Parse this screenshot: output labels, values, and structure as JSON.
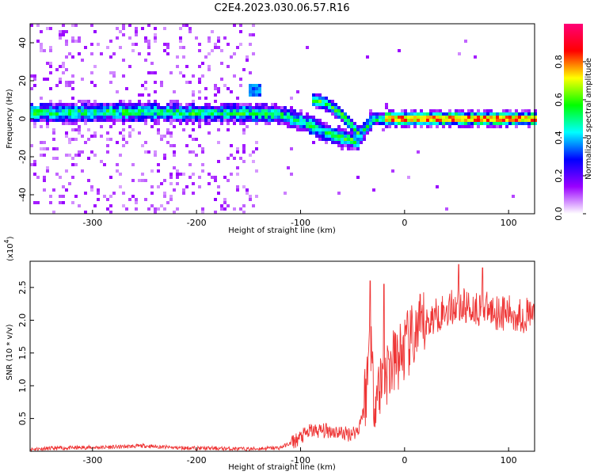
{
  "title": "C2E4.2023.030.06.57.R16",
  "chart_data": [
    {
      "type": "heatmap",
      "xlabel": "Height of straight line (km)",
      "ylabel": "Frequency (Hz)",
      "xlim": [
        -360,
        125
      ],
      "ylim": [
        -50,
        50
      ],
      "xticks": [
        -300,
        -200,
        -100,
        0,
        100
      ],
      "yticks": [
        -40,
        -20,
        0,
        20,
        40
      ],
      "colorbar": {
        "label": "Normalized spectral amplitude",
        "range": [
          0,
          1
        ],
        "ticks": [
          "0.0",
          "0.2",
          "0.4",
          "0.6",
          "0.8"
        ],
        "colors": [
          "#ffffff",
          "#9a00ff",
          "#0000ff",
          "#00ffff",
          "#00ff00",
          "#ffff00",
          "#ff0000",
          "#ff0077"
        ]
      },
      "ridge": {
        "description_free_points": [
          [
            -360,
            3
          ],
          [
            -300,
            3.5
          ],
          [
            -250,
            3.5
          ],
          [
            -200,
            3
          ],
          [
            -150,
            3
          ],
          [
            -120,
            2
          ],
          [
            -100,
            -1
          ],
          [
            -80,
            -6
          ],
          [
            -60,
            -10
          ],
          [
            -45,
            -12
          ],
          [
            -38,
            -5
          ],
          [
            -30,
            0
          ],
          [
            0,
            0
          ],
          [
            50,
            0
          ],
          [
            125,
            0
          ]
        ],
        "upper_branch": [
          [
            -90,
            10
          ],
          [
            -75,
            8
          ],
          [
            -60,
            2
          ],
          [
            -50,
            -4
          ],
          [
            -44,
            -8
          ]
        ],
        "spot": [
          -145,
          15
        ]
      }
    },
    {
      "type": "line",
      "xlabel": "Height of straight line (km)",
      "ylabel": "SNR (10 * v/v)",
      "yscale_label": "(x10",
      "yscale_exp": "4",
      "ytick_unit_note": ")",
      "xlim": [
        -360,
        125
      ],
      "ylim": [
        0,
        2.9
      ],
      "xticks": [
        -300,
        -200,
        -100,
        0,
        100
      ],
      "yticks": [
        0.5,
        1.0,
        1.5,
        2.0,
        2.5
      ],
      "ytick_labels": [
        "0.5",
        "1.0",
        "1.5",
        "2.0",
        "2.5"
      ],
      "color": "#ee3333",
      "envelope": [
        [
          -360,
          0.03
        ],
        [
          -320,
          0.05
        ],
        [
          -280,
          0.06
        ],
        [
          -250,
          0.08
        ],
        [
          -220,
          0.05
        ],
        [
          -180,
          0.04
        ],
        [
          -150,
          0.03
        ],
        [
          -120,
          0.05
        ],
        [
          -105,
          0.15
        ],
        [
          -90,
          0.3
        ],
        [
          -70,
          0.3
        ],
        [
          -55,
          0.25
        ],
        [
          -45,
          0.3
        ],
        [
          -40,
          0.6
        ],
        [
          -36,
          1.0
        ],
        [
          -33,
          1.9
        ],
        [
          -30,
          0.8
        ],
        [
          -25,
          0.9
        ],
        [
          -20,
          1.1
        ],
        [
          -10,
          1.3
        ],
        [
          0,
          1.5
        ],
        [
          10,
          1.7
        ],
        [
          20,
          1.9
        ],
        [
          30,
          2.05
        ],
        [
          50,
          2.2
        ],
        [
          70,
          2.15
        ],
        [
          90,
          2.1
        ],
        [
          110,
          2.05
        ],
        [
          125,
          2.05
        ]
      ],
      "peaks": [
        [
          -33,
          2.6
        ],
        [
          -20,
          2.55
        ],
        [
          52,
          2.85
        ],
        [
          75,
          2.8
        ]
      ]
    }
  ]
}
